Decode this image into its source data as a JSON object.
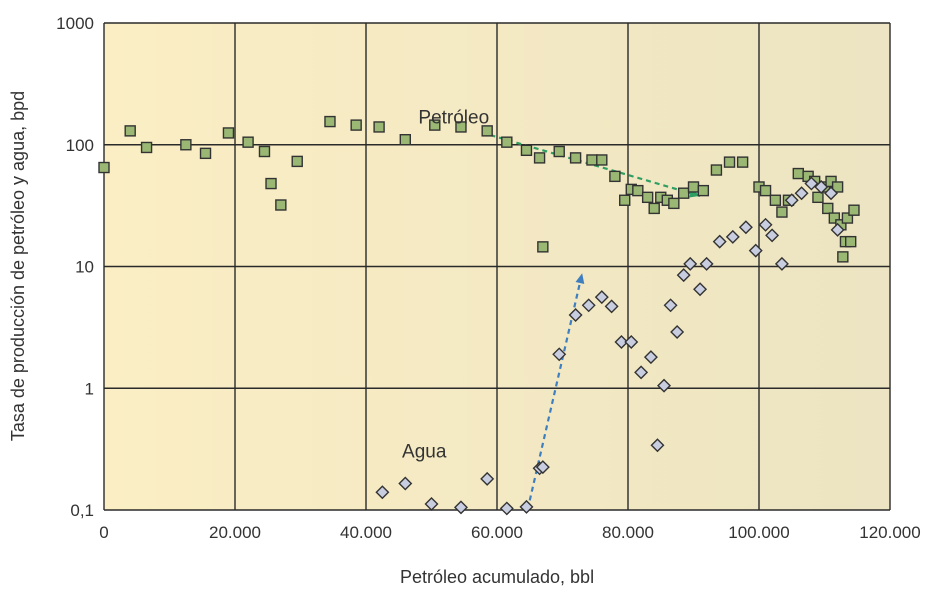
{
  "chart_data": {
    "type": "scatter",
    "title": "",
    "xlabel": "Petróleo acumulado, bbl",
    "ylabel": "Tasa de producción de petróleo y agua, bpd",
    "xlim": [
      0,
      120000
    ],
    "ylim": [
      0.1,
      1000
    ],
    "yscale": "log",
    "grid": true,
    "x_ticks": [
      {
        "value": 0,
        "label": "0"
      },
      {
        "value": 20000,
        "label": "20.000"
      },
      {
        "value": 40000,
        "label": "40.000"
      },
      {
        "value": 60000,
        "label": "60.000"
      },
      {
        "value": 80000,
        "label": "80.000"
      },
      {
        "value": 100000,
        "label": "100.000"
      },
      {
        "value": 120000,
        "label": "120.000"
      }
    ],
    "y_ticks": [
      {
        "value": 0.1,
        "label": "0,1"
      },
      {
        "value": 1,
        "label": "1"
      },
      {
        "value": 10,
        "label": "10"
      },
      {
        "value": 100,
        "label": "100"
      },
      {
        "value": 1000,
        "label": "1000"
      }
    ],
    "colors": {
      "plot_bg_left": "#fbeec4",
      "plot_bg_right": "#ece4c2",
      "grid": "#2a2a2a",
      "petroleo_fill": "#9ab873",
      "water_fill": "#c9cde0",
      "marker_stroke": "#333333",
      "petroleo_arrow": "#2e9e62",
      "agua_arrow": "#3f7fc0"
    },
    "series": [
      {
        "name": "Petróleo",
        "marker": "square",
        "points": [
          [
            0,
            65
          ],
          [
            4000,
            130
          ],
          [
            6500,
            95
          ],
          [
            12500,
            100
          ],
          [
            15500,
            85
          ],
          [
            19000,
            125
          ],
          [
            22000,
            105
          ],
          [
            24500,
            88
          ],
          [
            25500,
            48
          ],
          [
            27000,
            32
          ],
          [
            29500,
            73
          ],
          [
            34500,
            155
          ],
          [
            38500,
            145
          ],
          [
            42000,
            140
          ],
          [
            46000,
            110
          ],
          [
            50500,
            145
          ],
          [
            54500,
            140
          ],
          [
            58500,
            130
          ],
          [
            61500,
            105
          ],
          [
            64500,
            90
          ],
          [
            66500,
            78
          ],
          [
            67000,
            14.5
          ],
          [
            69500,
            88
          ],
          [
            72000,
            78
          ],
          [
            74500,
            75
          ],
          [
            76000,
            75
          ],
          [
            78000,
            55
          ],
          [
            79500,
            35
          ],
          [
            80500,
            43
          ],
          [
            81500,
            42
          ],
          [
            83000,
            37
          ],
          [
            84000,
            30
          ],
          [
            85000,
            37
          ],
          [
            86000,
            35
          ],
          [
            87000,
            33
          ],
          [
            88500,
            40
          ],
          [
            90000,
            45
          ],
          [
            91500,
            42
          ],
          [
            93500,
            62
          ],
          [
            95500,
            72
          ],
          [
            97500,
            72
          ],
          [
            100000,
            45
          ],
          [
            101000,
            42
          ],
          [
            102500,
            35
          ],
          [
            103500,
            28
          ],
          [
            104500,
            35
          ],
          [
            106000,
            58
          ],
          [
            107500,
            55
          ],
          [
            108500,
            50
          ],
          [
            109000,
            37
          ],
          [
            110000,
            45
          ],
          [
            110500,
            30
          ],
          [
            111000,
            50
          ],
          [
            111500,
            25
          ],
          [
            112000,
            45
          ],
          [
            112500,
            22
          ],
          [
            112800,
            12
          ],
          [
            113200,
            16
          ],
          [
            113500,
            25
          ],
          [
            114000,
            16
          ],
          [
            114500,
            29
          ]
        ]
      },
      {
        "name": "Agua",
        "marker": "diamond",
        "points": [
          [
            42500,
            0.14
          ],
          [
            46000,
            0.165
          ],
          [
            50000,
            0.112
          ],
          [
            54500,
            0.105
          ],
          [
            58500,
            0.18
          ],
          [
            61500,
            0.103
          ],
          [
            64500,
            0.106
          ],
          [
            66500,
            0.22
          ],
          [
            67000,
            0.225
          ],
          [
            69500,
            1.9
          ],
          [
            72000,
            4.0
          ],
          [
            74000,
            4.8
          ],
          [
            76000,
            5.6
          ],
          [
            77500,
            4.7
          ],
          [
            79000,
            2.4
          ],
          [
            80500,
            2.4
          ],
          [
            82000,
            1.35
          ],
          [
            83500,
            1.8
          ],
          [
            84500,
            0.34
          ],
          [
            85500,
            1.05
          ],
          [
            86500,
            4.8
          ],
          [
            87500,
            2.9
          ],
          [
            88500,
            8.5
          ],
          [
            89500,
            10.5
          ],
          [
            91000,
            6.5
          ],
          [
            92000,
            10.5
          ],
          [
            94000,
            16
          ],
          [
            96000,
            17.5
          ],
          [
            98000,
            21
          ],
          [
            99500,
            13.5
          ],
          [
            101000,
            22
          ],
          [
            102000,
            18
          ],
          [
            103500,
            10.5
          ],
          [
            105000,
            35
          ],
          [
            106500,
            40
          ],
          [
            108000,
            48
          ],
          [
            109500,
            45
          ],
          [
            111000,
            40
          ],
          [
            112000,
            20
          ]
        ]
      }
    ],
    "annotations": [
      {
        "text": "Petróleo",
        "x": 48000,
        "y": 150
      },
      {
        "text": "Agua",
        "x": 45500,
        "y": 0.27
      }
    ],
    "arrows": [
      {
        "series": "Petróleo",
        "from": [
          59000,
          120
        ],
        "to": [
          91000,
          38
        ]
      },
      {
        "series": "Agua",
        "from": [
          65000,
          0.12
        ],
        "to": [
          73000,
          8.8
        ]
      }
    ]
  }
}
